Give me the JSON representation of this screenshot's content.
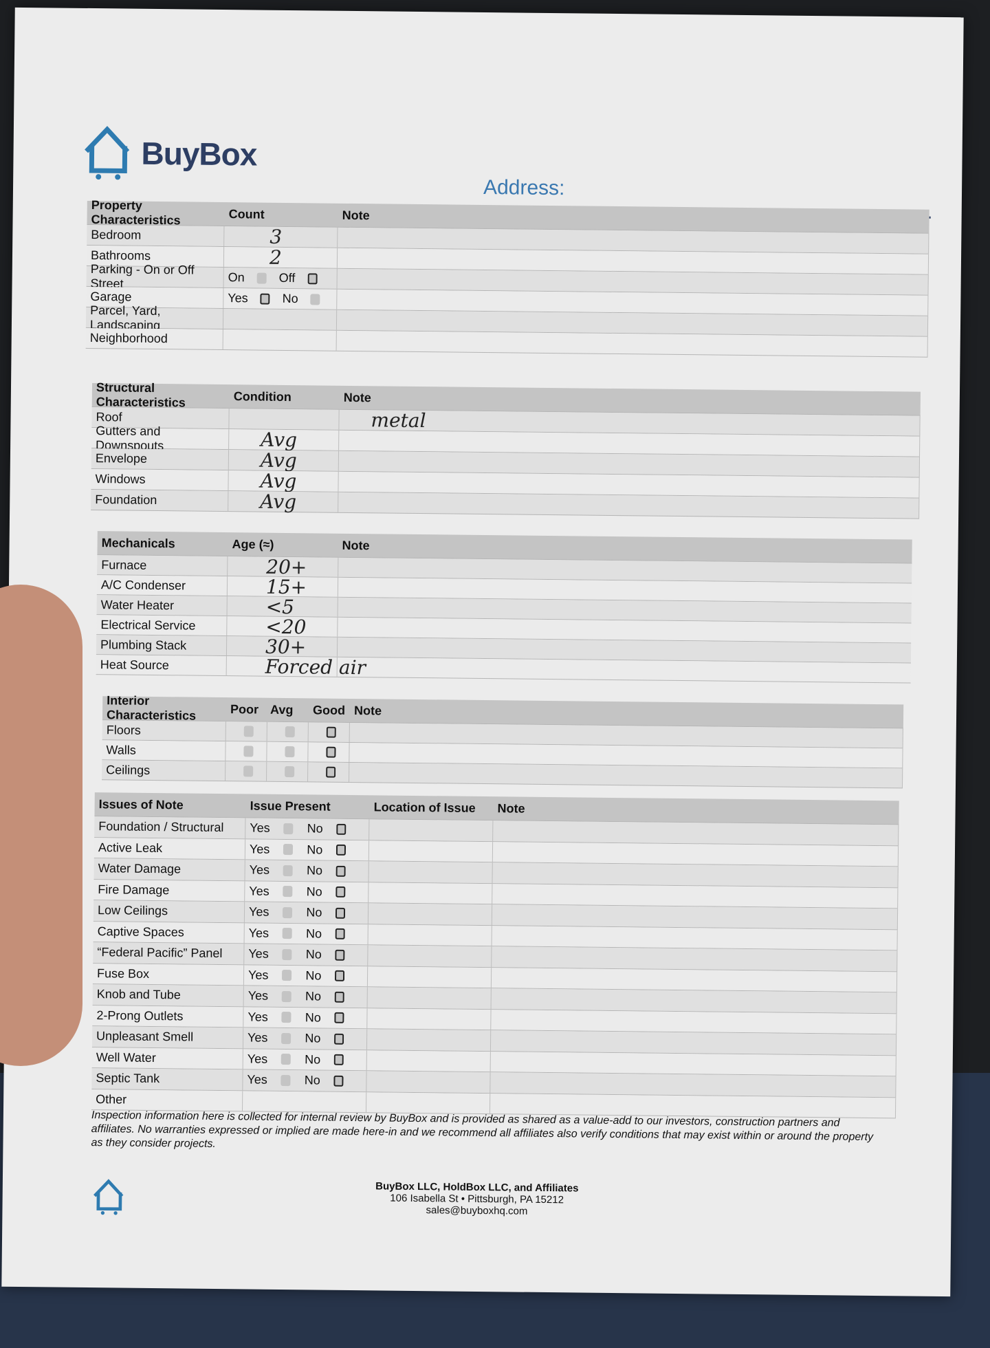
{
  "brand": {
    "name": "BuyBox",
    "color": "#2e7bb0"
  },
  "address": {
    "label": "Address:",
    "value": ""
  },
  "property": {
    "headers": [
      "Property Characteristics",
      "Count",
      "Note"
    ],
    "rows": [
      {
        "label": "Bedroom",
        "count": "3"
      },
      {
        "label": "Bathrooms",
        "count": "2"
      },
      {
        "label": "Parking - On or Off Street",
        "opt1": "On",
        "opt1_checked": false,
        "opt2": "Off",
        "opt2_checked": true
      },
      {
        "label": "Garage",
        "opt1": "Yes",
        "opt1_checked": true,
        "opt2": "No",
        "opt2_checked": false
      },
      {
        "label": "Parcel, Yard, Landscaping"
      },
      {
        "label": "Neighborhood"
      }
    ]
  },
  "structural": {
    "headers": [
      "Structural Characteristics",
      "Condition",
      "Note"
    ],
    "rows": [
      {
        "label": "Roof",
        "value": "",
        "note": "metal"
      },
      {
        "label": "Gutters and Downspouts",
        "value": "Avg"
      },
      {
        "label": "Envelope",
        "value": "Avg"
      },
      {
        "label": "Windows",
        "value": "Avg"
      },
      {
        "label": "Foundation",
        "value": "Avg"
      }
    ]
  },
  "mechanicals": {
    "headers": [
      "Mechanicals",
      "Age (≈)",
      "Note"
    ],
    "rows": [
      {
        "label": "Furnace",
        "value": "20+"
      },
      {
        "label": "A/C Condenser",
        "value": "15+"
      },
      {
        "label": "Water Heater",
        "value": "<5"
      },
      {
        "label": "Electrical Service",
        "value": "<20"
      },
      {
        "label": "Plumbing Stack",
        "value": "30+"
      },
      {
        "label": "Heat Source",
        "value": "Forced air"
      }
    ]
  },
  "interior": {
    "headers": [
      "Interior Characteristics",
      "Poor",
      "Avg",
      "Good",
      "Note"
    ],
    "rows": [
      {
        "label": "Floors",
        "rating": "Good"
      },
      {
        "label": "Walls",
        "rating": "Good"
      },
      {
        "label": "Ceilings",
        "rating": "Good"
      }
    ]
  },
  "issues": {
    "headers": [
      "Issues of Note",
      "Issue Present",
      "Location of Issue",
      "Note"
    ],
    "yes_label": "Yes",
    "no_label": "No",
    "rows": [
      {
        "label": "Foundation / Structural",
        "present": "No"
      },
      {
        "label": "Active Leak",
        "present": "No"
      },
      {
        "label": "Water Damage",
        "present": "No"
      },
      {
        "label": "Fire Damage",
        "present": "No"
      },
      {
        "label": "Low Ceilings",
        "present": "No"
      },
      {
        "label": "Captive Spaces",
        "present": "No"
      },
      {
        "label": "“Federal Pacific” Panel",
        "present": "No"
      },
      {
        "label": "Fuse Box",
        "present": "No"
      },
      {
        "label": "Knob and Tube",
        "present": "No"
      },
      {
        "label": "2-Prong Outlets",
        "present": "No"
      },
      {
        "label": "Unpleasant Smell",
        "present": "No"
      },
      {
        "label": "Well Water",
        "present": "No"
      },
      {
        "label": "Septic Tank",
        "present": "No"
      },
      {
        "label": "Other",
        "present": ""
      }
    ]
  },
  "disclaimer": "Inspection information here is collected for internal review by BuyBox and is provided as shared as a value-add to our investors, construction partners and affiliates.  No warranties expressed or implied are made here-in and we recommend all affiliates also verify conditions that may exist within or around the property as they consider projects.",
  "footer": {
    "company": "BuyBox LLC, HoldBox LLC, and Affiliates",
    "address": "106 Isabella St • Pittsburgh, PA 15212",
    "email": "sales@buyboxhq.com"
  }
}
